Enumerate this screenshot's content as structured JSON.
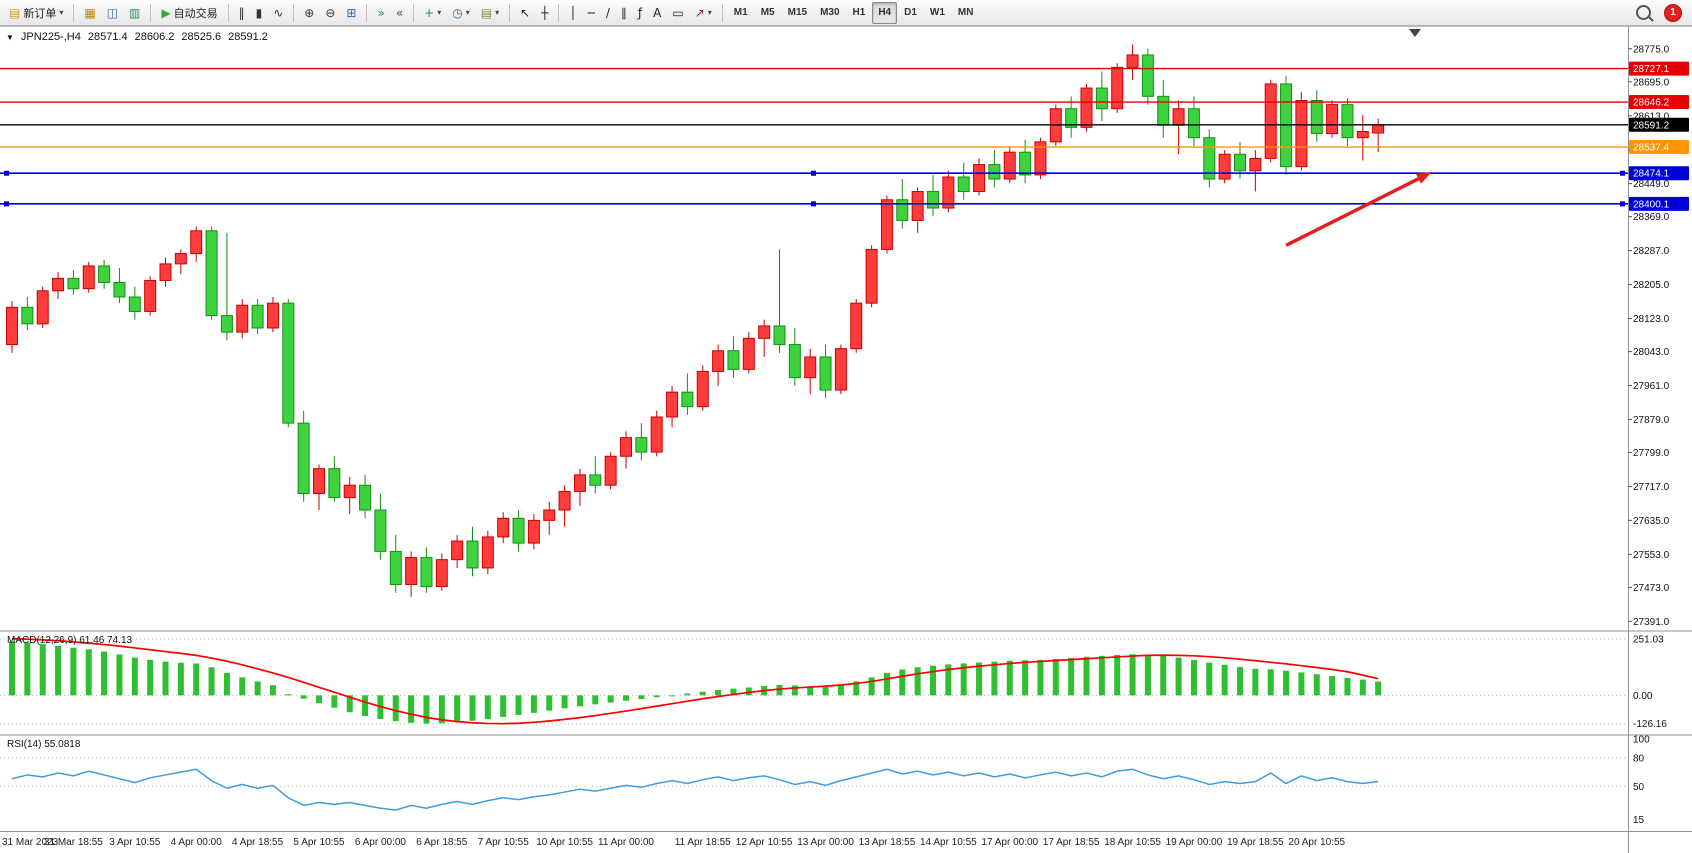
{
  "toolbar": {
    "new_order_label": "新订单",
    "auto_trading_label": "自动交易",
    "notification_count": "1",
    "timeframes": [
      "M1",
      "M5",
      "M15",
      "M30",
      "H1",
      "H4",
      "D1",
      "W1",
      "MN"
    ],
    "active_timeframe": "H4",
    "groups": [
      {
        "name": "trade",
        "items": [
          {
            "name": "new-order-button",
            "glyph": "▤",
            "glyph_color": "#c8a028",
            "label_key": "new_order_label",
            "caret": true
          }
        ]
      },
      {
        "name": "windows",
        "items": [
          {
            "name": "market-watch-button",
            "glyph": "▦",
            "glyph_color": "#b8860b"
          },
          {
            "name": "navigator-button",
            "glyph": "◫",
            "glyph_color": "#4169aa"
          },
          {
            "name": "terminal-button",
            "glyph": "▥",
            "glyph_color": "#2e8b57"
          }
        ]
      },
      {
        "name": "autotrade",
        "items": [
          {
            "name": "auto-trading-button",
            "glyph": "▶",
            "glyph_color": "#2eaa2e",
            "label_key": "auto_trading_label"
          }
        ]
      },
      {
        "name": "chart-type",
        "items": [
          {
            "name": "bar-chart-button",
            "glyph": "‖",
            "glyph_color": "#333333"
          },
          {
            "name": "candlestick-button",
            "glyph": "▮",
            "glyph_color": "#333333"
          },
          {
            "name": "line-chart-button",
            "glyph": "∿",
            "glyph_color": "#333333"
          }
        ]
      },
      {
        "name": "zoom",
        "items": [
          {
            "name": "zoom-in-button",
            "glyph": "⊕",
            "glyph_color": "#333333"
          },
          {
            "name": "zoom-out-button",
            "glyph": "⊖",
            "glyph_color": "#333333"
          },
          {
            "name": "tile-windows-button",
            "glyph": "⊞",
            "glyph_color": "#336699"
          }
        ]
      },
      {
        "name": "scroll",
        "items": [
          {
            "name": "auto-scroll-button",
            "glyph": "»",
            "glyph_color": "#2e8b57"
          },
          {
            "name": "chart-shift-button",
            "glyph": "«",
            "glyph_color": "#555555"
          }
        ]
      },
      {
        "name": "insert",
        "items": [
          {
            "name": "indicators-button",
            "glyph": "+",
            "glyph_color": "#2e8b57",
            "caret": true
          },
          {
            "name": "periods-button",
            "glyph": "◷",
            "glyph_color": "#336699",
            "caret": true
          },
          {
            "name": "templates-button",
            "glyph": "▤",
            "glyph_color": "#888844",
            "caret": true
          }
        ]
      },
      {
        "name": "cursor",
        "items": [
          {
            "name": "cursor-button",
            "glyph": "↖",
            "glyph_color": "#222222"
          },
          {
            "name": "crosshair-button",
            "glyph": "┼",
            "glyph_color": "#222222"
          }
        ]
      },
      {
        "name": "drawing",
        "items": [
          {
            "name": "vertical-line-button",
            "glyph": "│",
            "glyph_color": "#222222"
          },
          {
            "name": "horizontal-line-button",
            "glyph": "─",
            "glyph_color": "#222222"
          },
          {
            "name": "trendline-button",
            "glyph": "/",
            "glyph_color": "#222222"
          },
          {
            "name": "channel-button",
            "glyph": "∥",
            "glyph_color": "#222222"
          },
          {
            "name": "fibonacci-button",
            "glyph": "ƒ",
            "glyph_color": "#222222"
          },
          {
            "name": "text-button",
            "glyph": "A",
            "glyph_color": "#222222"
          },
          {
            "name": "label-button",
            "glyph": "▭",
            "glyph_color": "#222222"
          },
          {
            "name": "arrows-button",
            "glyph": "↗",
            "glyph_color": "#aa2222",
            "caret": true
          }
        ]
      }
    ]
  },
  "chart_header": {
    "collapse_glyph": "▼",
    "symbol_period": "JPN225-,H4",
    "open": "28571.4",
    "high": "28606.2",
    "low": "28525.6",
    "close": "28591.2"
  },
  "indicators": {
    "macd_label": "MACD(12,26,9) 61.46 74.13",
    "rsi_label": "RSI(14) 55.0818"
  },
  "colors": {
    "bull_fill": "#ff3c3c",
    "bull_border": "#cc0000",
    "bear_fill": "#3ed23e",
    "bear_border": "#168f16",
    "macd_hist": "#2fbf2f",
    "macd_signal": "#ff0000",
    "rsi_line": "#3d9de0",
    "red": "#e80000",
    "blue": "#0000dd",
    "orange": "#ff9500",
    "black": "#000000",
    "arrow": "#dd2020"
  },
  "price_scale": {
    "ticks": [
      "28775.0",
      "28695.0",
      "28613.0",
      "28531.0",
      "28449.0",
      "28369.0",
      "28287.0",
      "28205.0",
      "28123.0",
      "28043.0",
      "27961.0",
      "27879.0",
      "27799.0",
      "27717.0",
      "27635.0",
      "27553.0",
      "27473.0",
      "27391.0"
    ],
    "tick_values": [
      28775.0,
      28695.0,
      28613.0,
      28531.0,
      28449.0,
      28369.0,
      28287.0,
      28205.0,
      28123.0,
      28043.0,
      27961.0,
      27879.0,
      27799.0,
      27717.0,
      27635.0,
      27553.0,
      27473.0,
      27391.0
    ]
  },
  "hlines": [
    {
      "value": 28727.1,
      "label": "28727.1",
      "color": "red"
    },
    {
      "value": 28646.2,
      "label": "28646.2",
      "color": "red"
    },
    {
      "value": 28591.2,
      "label": "28591.2",
      "color": "black"
    },
    {
      "value": 28537.4,
      "label": "28537.4",
      "color": "orange"
    },
    {
      "value": 28474.1,
      "label": "28474.1",
      "color": "blue",
      "handles": true
    },
    {
      "value": 28400.1,
      "label": "28400.1",
      "color": "blue",
      "handles": true
    }
  ],
  "trend_arrow": {
    "from_candle": 83,
    "from_price": 28300,
    "to_candle": 92.5,
    "to_price": 28477
  },
  "shift_marker_x": 1415,
  "chart_data": {
    "type": "candlestick",
    "title": "JPN225-,H4",
    "y_range": [
      27370,
      28830
    ],
    "x_ticks": {
      "indices": [
        0,
        4,
        8,
        12,
        16,
        20,
        24,
        28,
        32,
        36,
        40,
        45,
        49,
        53,
        57,
        61,
        65,
        69,
        73,
        77,
        81,
        85
      ],
      "labels": [
        "31 Mar 2023",
        "31 Mar 18:55",
        "3 Apr 10:55",
        "4 Apr 00:00",
        "4 Apr 18:55",
        "5 Apr 10:55",
        "6 Apr 00:00",
        "6 Apr 18:55",
        "7 Apr 10:55",
        "10 Apr 10:55",
        "11 Apr 00:00",
        "11 Apr 18:55",
        "12 Apr 10:55",
        "13 Apr 00:00",
        "13 Apr 18:55",
        "14 Apr 10:55",
        "17 Apr 00:00",
        "17 Apr 18:55",
        "18 Apr 10:55",
        "19 Apr 00:00",
        "19 Apr 18:55",
        "20 Apr 10:55"
      ]
    },
    "ohlc": [
      [
        28060,
        28165,
        28040,
        28150
      ],
      [
        28150,
        28175,
        28095,
        28110
      ],
      [
        28110,
        28200,
        28100,
        28190
      ],
      [
        28190,
        28235,
        28170,
        28220
      ],
      [
        28220,
        28240,
        28180,
        28195
      ],
      [
        28195,
        28260,
        28185,
        28250
      ],
      [
        28250,
        28265,
        28195,
        28210
      ],
      [
        28210,
        28245,
        28160,
        28175
      ],
      [
        28175,
        28200,
        28120,
        28140
      ],
      [
        28140,
        28225,
        28130,
        28215
      ],
      [
        28215,
        28270,
        28200,
        28255
      ],
      [
        28255,
        28290,
        28230,
        28280
      ],
      [
        28280,
        28345,
        28260,
        28335
      ],
      [
        28335,
        28345,
        28120,
        28130
      ],
      [
        28130,
        28330,
        28070,
        28090
      ],
      [
        28090,
        28170,
        28075,
        28155
      ],
      [
        28155,
        28170,
        28085,
        28100
      ],
      [
        28100,
        28175,
        28090,
        28160
      ],
      [
        28160,
        28170,
        27860,
        27870
      ],
      [
        27870,
        27900,
        27680,
        27700
      ],
      [
        27700,
        27770,
        27660,
        27760
      ],
      [
        27760,
        27790,
        27680,
        27690
      ],
      [
        27690,
        27740,
        27650,
        27720
      ],
      [
        27720,
        27745,
        27640,
        27660
      ],
      [
        27660,
        27700,
        27540,
        27560
      ],
      [
        27560,
        27600,
        27460,
        27480
      ],
      [
        27480,
        27560,
        27450,
        27545
      ],
      [
        27545,
        27570,
        27460,
        27475
      ],
      [
        27475,
        27555,
        27465,
        27540
      ],
      [
        27540,
        27600,
        27520,
        27585
      ],
      [
        27585,
        27620,
        27500,
        27520
      ],
      [
        27520,
        27610,
        27505,
        27595
      ],
      [
        27595,
        27655,
        27580,
        27640
      ],
      [
        27640,
        27660,
        27560,
        27580
      ],
      [
        27580,
        27650,
        27565,
        27635
      ],
      [
        27635,
        27680,
        27600,
        27660
      ],
      [
        27660,
        27720,
        27620,
        27705
      ],
      [
        27705,
        27760,
        27670,
        27745
      ],
      [
        27745,
        27790,
        27700,
        27720
      ],
      [
        27720,
        27800,
        27710,
        27790
      ],
      [
        27790,
        27850,
        27760,
        27835
      ],
      [
        27835,
        27870,
        27780,
        27800
      ],
      [
        27800,
        27900,
        27790,
        27885
      ],
      [
        27885,
        27960,
        27860,
        27945
      ],
      [
        27945,
        27990,
        27890,
        27910
      ],
      [
        27910,
        28010,
        27900,
        27995
      ],
      [
        27995,
        28060,
        27960,
        28045
      ],
      [
        28045,
        28080,
        27980,
        28000
      ],
      [
        28000,
        28090,
        27990,
        28075
      ],
      [
        28075,
        28120,
        28030,
        28105
      ],
      [
        28105,
        28290,
        28040,
        28060
      ],
      [
        28060,
        28100,
        27960,
        27980
      ],
      [
        27980,
        28050,
        27940,
        28030
      ],
      [
        28030,
        28060,
        27930,
        27950
      ],
      [
        27950,
        28060,
        27940,
        28050
      ],
      [
        28050,
        28170,
        28040,
        28160
      ],
      [
        28160,
        28300,
        28150,
        28290
      ],
      [
        28290,
        28420,
        28280,
        28410
      ],
      [
        28410,
        28460,
        28340,
        28360
      ],
      [
        28360,
        28440,
        28330,
        28430
      ],
      [
        28430,
        28470,
        28370,
        28390
      ],
      [
        28390,
        28480,
        28380,
        28465
      ],
      [
        28465,
        28500,
        28410,
        28430
      ],
      [
        28430,
        28510,
        28420,
        28495
      ],
      [
        28495,
        28530,
        28440,
        28460
      ],
      [
        28460,
        28540,
        28450,
        28525
      ],
      [
        28525,
        28555,
        28450,
        28470
      ],
      [
        28470,
        28560,
        28460,
        28550
      ],
      [
        28550,
        28640,
        28540,
        28630
      ],
      [
        28630,
        28660,
        28560,
        28585
      ],
      [
        28585,
        28690,
        28575,
        28680
      ],
      [
        28680,
        28720,
        28600,
        28630
      ],
      [
        28630,
        28740,
        28620,
        28730
      ],
      [
        28730,
        28785,
        28700,
        28760
      ],
      [
        28760,
        28775,
        28640,
        28660
      ],
      [
        28660,
        28700,
        28560,
        28590
      ],
      [
        28590,
        28650,
        28520,
        28630
      ],
      [
        28630,
        28660,
        28540,
        28560
      ],
      [
        28560,
        28580,
        28440,
        28460
      ],
      [
        28460,
        28530,
        28450,
        28520
      ],
      [
        28520,
        28550,
        28460,
        28480
      ],
      [
        28480,
        28530,
        28430,
        28510
      ],
      [
        28510,
        28700,
        28500,
        28690
      ],
      [
        28690,
        28710,
        28470,
        28490
      ],
      [
        28490,
        28670,
        28480,
        28650
      ],
      [
        28650,
        28675,
        28550,
        28570
      ],
      [
        28570,
        28650,
        28560,
        28640
      ],
      [
        28640,
        28655,
        28540,
        28560
      ],
      [
        28560,
        28615,
        28505,
        28575
      ],
      [
        28571.4,
        28606.2,
        28525.6,
        28591.2
      ]
    ],
    "panes": {
      "macd": {
        "range": [
          -172,
          282
        ],
        "scale_labels": [
          "251.03",
          "0.00",
          "-126.16"
        ],
        "scale_values": [
          251.03,
          0,
          -126.16
        ],
        "histogram": [
          240,
          235,
          228,
          220,
          212,
          205,
          195,
          182,
          168,
          158,
          150,
          145,
          142,
          125,
          100,
          80,
          62,
          45,
          5,
          -15,
          -35,
          -55,
          -75,
          -92,
          -105,
          -115,
          -122,
          -126,
          -124,
          -120,
          -113,
          -105,
          -96,
          -87,
          -78,
          -68,
          -58,
          -49,
          -40,
          -32,
          -24,
          -16,
          -8,
          0,
          8,
          16,
          24,
          30,
          35,
          42,
          46,
          44,
          40,
          38,
          48,
          62,
          80,
          100,
          115,
          125,
          132,
          138,
          142,
          146,
          150,
          154,
          156,
          158,
          162,
          166,
          172,
          176,
          180,
          183,
          182,
          176,
          168,
          158,
          146,
          136,
          126,
          118,
          116,
          110,
          102,
          94,
          86,
          78,
          70,
          61.46
        ],
        "signal": [
          252,
          250,
          247,
          243,
          238,
          232,
          226,
          219,
          211,
          203,
          195,
          187,
          178,
          166,
          152,
          136,
          118,
          100,
          80,
          58,
          36,
          14,
          -8,
          -30,
          -50,
          -68,
          -84,
          -98,
          -109,
          -117,
          -122,
          -125,
          -126,
          -124,
          -120,
          -114,
          -107,
          -99,
          -90,
          -80,
          -70,
          -59,
          -48,
          -37,
          -26,
          -15,
          -5,
          4,
          13,
          21,
          28,
          33,
          37,
          41,
          46,
          53,
          62,
          73,
          85,
          96,
          106,
          115,
          123,
          130,
          136,
          142,
          147,
          151,
          155,
          159,
          163,
          167,
          171,
          175,
          178,
          179,
          178,
          176,
          172,
          167,
          161,
          154,
          147,
          140,
          132,
          124,
          115,
          105,
          90,
          74.13
        ]
      },
      "rsi": {
        "range": [
          3,
          103
        ],
        "levels": [
          80,
          50
        ],
        "scale_labels": [
          "100",
          "80",
          "50",
          "15"
        ],
        "scale_values": [
          100,
          80,
          50,
          15
        ],
        "values": [
          58,
          62,
          60,
          64,
          61,
          66,
          62,
          58,
          54,
          59,
          62,
          65,
          68,
          56,
          48,
          52,
          48,
          51,
          38,
          30,
          33,
          31,
          33,
          30,
          27,
          25,
          30,
          27,
          31,
          34,
          31,
          35,
          38,
          36,
          39,
          41,
          44,
          47,
          45,
          48,
          51,
          49,
          53,
          56,
          53,
          57,
          60,
          56,
          59,
          61,
          57,
          52,
          55,
          51,
          56,
          60,
          64,
          68,
          63,
          66,
          62,
          65,
          61,
          64,
          60,
          63,
          59,
          62,
          65,
          61,
          64,
          60,
          66,
          68,
          62,
          58,
          61,
          57,
          52,
          55,
          53,
          55,
          64,
          53,
          61,
          56,
          59,
          55,
          53,
          55.08
        ]
      }
    }
  }
}
